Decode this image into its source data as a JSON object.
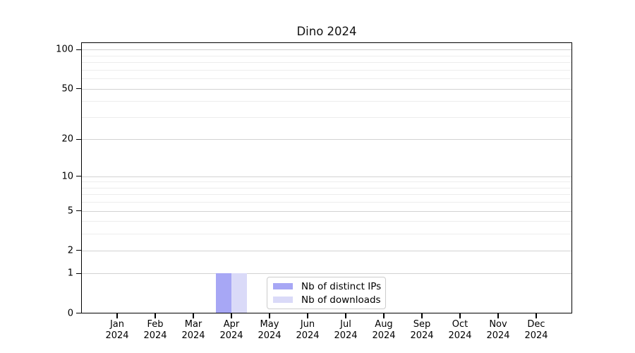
{
  "chart_data": {
    "type": "bar",
    "title": "Dino 2024",
    "categories": [
      "Jan 2024",
      "Feb 2024",
      "Mar 2024",
      "Apr 2024",
      "May 2024",
      "Jun 2024",
      "Jul 2024",
      "Aug 2024",
      "Sep 2024",
      "Oct 2024",
      "Nov 2024",
      "Dec 2024"
    ],
    "series": [
      {
        "name": "Nb of distinct IPs",
        "color": "#a7a7f5",
        "values": [
          0,
          0,
          0,
          1,
          0,
          0,
          0,
          0,
          0,
          0,
          0,
          0
        ]
      },
      {
        "name": "Nb of downloads",
        "color": "#dadaf8",
        "values": [
          0,
          0,
          0,
          1,
          0,
          0,
          0,
          0,
          0,
          0,
          0,
          0
        ]
      }
    ],
    "y_axis": {
      "scale": "log1p",
      "ticks": [
        0,
        1,
        2,
        5,
        10,
        20,
        50,
        100
      ],
      "minor_ticks": [
        3,
        4,
        6,
        7,
        8,
        9,
        30,
        40,
        60,
        70,
        80,
        90
      ],
      "ylim": [
        0,
        114
      ]
    },
    "x_axis": {
      "tick_label_lines": 2
    },
    "legend": {
      "position": "lower center"
    },
    "grid": {
      "major_color": "#d2d2d2",
      "minor_color": "#ededed",
      "grid_on": true
    },
    "colors": {
      "axis": "#000000",
      "background": "#ffffff",
      "text": "#000000"
    }
  }
}
